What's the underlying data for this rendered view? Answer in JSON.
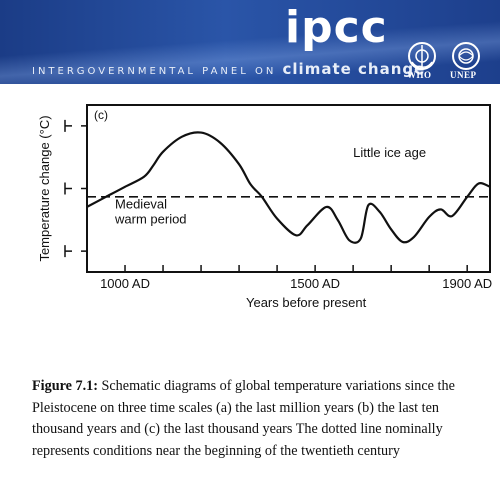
{
  "banner": {
    "logo": "ipcc",
    "org_name": "INTERGOVERNMENTAL PANEL ON",
    "org_tail": "climate change",
    "emblems": [
      "WHO",
      "UNEP"
    ]
  },
  "chart_data": {
    "type": "line",
    "panel_label": "(c)",
    "ylabel": "Temperature change (°C)",
    "xlabel": "Years before present",
    "xlim": [
      900,
      1960
    ],
    "ylim": [
      -1,
      1
    ],
    "x_tick_labels": [
      {
        "value": 1000,
        "label": "1000 AD"
      },
      {
        "value": 1500,
        "label": "1500 AD"
      },
      {
        "value": 1900,
        "label": "1900 AD"
      }
    ],
    "x_minor_ticks": [
      1100,
      1200,
      1300,
      1400,
      1600,
      1700,
      1800
    ],
    "y_ticks": [
      0.75,
      0,
      -0.75
    ],
    "series": [
      {
        "x": [
          900,
          950,
          1000,
          1050,
          1075,
          1100,
          1150,
          1200,
          1250,
          1300,
          1330,
          1360,
          1400,
          1450,
          1480,
          1530,
          1560,
          1590,
          1620,
          1640,
          1670,
          1700,
          1730,
          1760,
          1800,
          1830,
          1860,
          1900,
          1930,
          1960
        ],
        "y": [
          -0.22,
          -0.1,
          0.02,
          0.14,
          0.28,
          0.44,
          0.62,
          0.67,
          0.55,
          0.29,
          0.05,
          -0.1,
          -0.36,
          -0.56,
          -0.44,
          -0.22,
          -0.38,
          -0.62,
          -0.6,
          -0.2,
          -0.28,
          -0.49,
          -0.64,
          -0.58,
          -0.34,
          -0.25,
          -0.33,
          -0.1,
          0.06,
          0.02
        ]
      }
    ],
    "reference_line": {
      "y": -0.1,
      "style": "dashed"
    },
    "annotations": [
      {
        "text": "Little ice age",
        "x": 1600,
        "y": 0.38
      },
      {
        "text": "Medieval",
        "x": 1000,
        "y": -0.24
      },
      {
        "text": "warm period",
        "x": 1000,
        "y": -0.42
      }
    ]
  },
  "caption": {
    "label": "Figure 7.1:",
    "text": " Schematic diagrams of global temperature variations since the Pleistocene on three time scales (a) the last million years (b) the last ten thousand years and (c) the last thousand years The dotted line nominally represents conditions near the beginning of the twentieth century"
  },
  "colors": {
    "banner": "#2a55a8",
    "ink": "#111111"
  }
}
